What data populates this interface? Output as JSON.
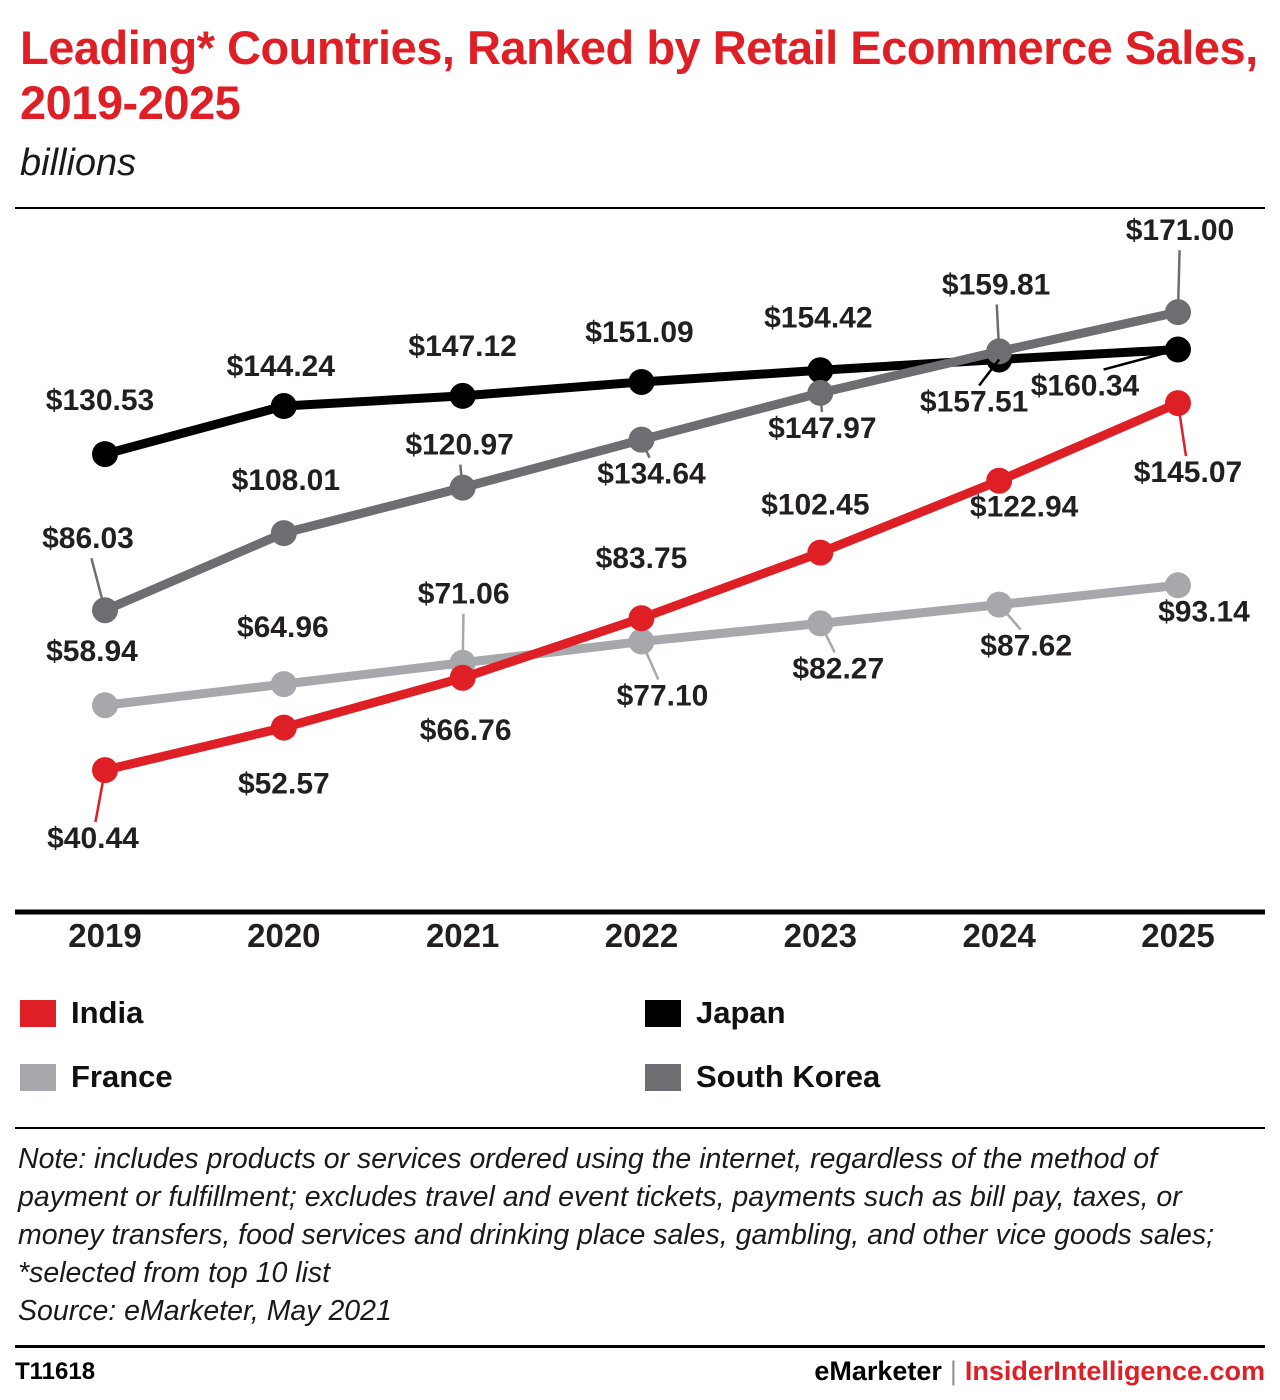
{
  "title": "Leading* Countries, Ranked by Retail Ecommerce Sales, 2019-2025",
  "subtitle": "billions",
  "colors": {
    "accent_red": "#df1f26",
    "black": "#000000",
    "light_gray": "#a6a8ab",
    "dark_gray": "#6d6e71"
  },
  "chart_data": {
    "type": "line",
    "title": "Leading* Countries, Ranked by Retail Ecommerce Sales, 2019-2025",
    "units": "billions (USD)",
    "x": [
      "2019",
      "2020",
      "2021",
      "2022",
      "2023",
      "2024",
      "2025"
    ],
    "ylim": [
      0,
      196
    ],
    "grid": false,
    "legend_position": "bottom",
    "series": [
      {
        "id": "france",
        "name": "France",
        "color": "#a6a8ab",
        "values": [
          58.94,
          64.96,
          71.06,
          77.1,
          82.27,
          87.62,
          93.14
        ],
        "labels": [
          "$58.94",
          "$64.96",
          "$71.06",
          "$77.10",
          "$82.27",
          "$87.62",
          "$93.14"
        ],
        "label_offsets": [
          [
            -13,
            -44,
            0
          ],
          [
            -1,
            -47,
            0
          ],
          [
            1,
            -59,
            1
          ],
          [
            21,
            64,
            1
          ],
          [
            18,
            55,
            1
          ],
          [
            27,
            51,
            1
          ],
          [
            26,
            36,
            0
          ]
        ]
      },
      {
        "id": "japan",
        "name": "Japan",
        "color": "#000000",
        "values": [
          130.53,
          144.24,
          147.12,
          151.09,
          154.42,
          157.51,
          160.34
        ],
        "labels": [
          "$130.53",
          "$144.24",
          "$147.12",
          "$151.09",
          "$154.42",
          "$157.51",
          "$160.34"
        ],
        "label_offsets": [
          [
            -5,
            -44,
            0
          ],
          [
            -3,
            -30,
            0
          ],
          [
            0,
            -40,
            0
          ],
          [
            -2,
            -40,
            0
          ],
          [
            -2,
            -43,
            0
          ],
          [
            -25,
            52,
            1
          ],
          [
            -93,
            46,
            1
          ]
        ]
      },
      {
        "id": "south-korea",
        "name": "South Korea",
        "color": "#6d6e71",
        "values": [
          86.03,
          108.01,
          120.97,
          134.64,
          147.97,
          159.81,
          171.0
        ],
        "labels": [
          "$86.03",
          "$108.01",
          "$120.97",
          "$134.64",
          "$147.97",
          "$159.81",
          "$171.00"
        ],
        "label_offsets": [
          [
            -17,
            -62,
            1
          ],
          [
            2,
            -43,
            0
          ],
          [
            -3,
            -33,
            1
          ],
          [
            10,
            44,
            1
          ],
          [
            2,
            45,
            1
          ],
          [
            -3,
            -57,
            1
          ],
          [
            2,
            -72,
            1
          ]
        ]
      },
      {
        "id": "india",
        "name": "India",
        "color": "#df1f26",
        "values": [
          40.44,
          52.57,
          66.76,
          83.75,
          102.45,
          122.94,
          145.07
        ],
        "labels": [
          "$40.44",
          "$52.57",
          "$66.76",
          "$83.75",
          "$102.45",
          "$122.94",
          "$145.07"
        ],
        "label_offsets": [
          [
            -12,
            78,
            1
          ],
          [
            0,
            66,
            0
          ],
          [
            3,
            62,
            0
          ],
          [
            0,
            -50,
            0
          ],
          [
            -5,
            -38,
            0
          ],
          [
            25,
            36,
            0
          ],
          [
            10,
            79,
            1
          ]
        ]
      }
    ],
    "legend": [
      {
        "id": "india",
        "label": "India",
        "color": "#df1f26"
      },
      {
        "id": "japan",
        "label": "Japan",
        "color": "#000000"
      },
      {
        "id": "france",
        "label": "France",
        "color": "#a6a8ab"
      },
      {
        "id": "south-korea",
        "label": "South Korea",
        "color": "#6d6e71"
      }
    ]
  },
  "note": "Note: includes products or services ordered using the internet, regardless of the method of payment or fulfillment; excludes travel and event tickets, payments such as bill pay, taxes, or money transfers, food services and drinking place sales, gambling, and other vice goods sales; *selected from top 10 list",
  "source": "Source: eMarketer, May 2021",
  "footer": {
    "id": "T11618",
    "brand": "eMarketer",
    "separator": "|",
    "site": "InsiderIntelligence.com"
  }
}
